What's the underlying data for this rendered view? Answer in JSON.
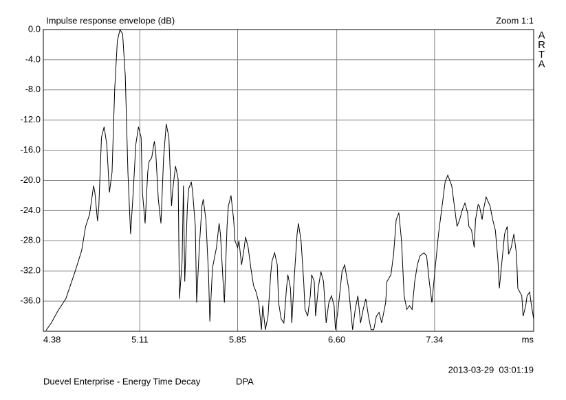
{
  "chart_data": {
    "type": "line",
    "title": "Impulse response envelope (dB)",
    "zoom": "Zoom 1:1",
    "brand": "ARTA",
    "xlabel": "ms",
    "timestamp": "2013-03-29  03:01:19",
    "footer": "Duevel Enterprise - Energy Time Decay",
    "footer_right": "DPA",
    "color": "#000000",
    "grid": true,
    "xlim": [
      4.38,
      8.09
    ],
    "ylim": [
      -40,
      0
    ],
    "xticks": [
      4.38,
      5.11,
      5.85,
      {
        "value": 6.6,
        "label": "6.60"
      },
      7.34
    ],
    "yticks": [
      {
        "value": 0,
        "label": "0.0"
      },
      {
        "value": -4,
        "label": "-4.0"
      },
      {
        "value": -8,
        "label": "-8.0"
      },
      {
        "value": -12,
        "label": "-12.0"
      },
      {
        "value": -16,
        "label": "-16.0"
      },
      {
        "value": -20,
        "label": "-20.0"
      },
      {
        "value": -24,
        "label": "-24.0"
      },
      {
        "value": -28,
        "label": "-28.0"
      },
      {
        "value": -32,
        "label": "-32.0"
      },
      {
        "value": -36,
        "label": "-36.0"
      }
    ],
    "x": [
      4.4,
      4.44,
      4.49,
      4.55,
      4.62,
      4.67,
      4.7,
      4.73,
      4.75,
      4.76,
      4.77,
      4.79,
      4.8,
      4.82,
      4.84,
      4.86,
      4.88,
      4.9,
      4.92,
      4.94,
      4.96,
      4.98,
      5.0,
      5.02,
      5.04,
      5.06,
      5.08,
      5.1,
      5.12,
      5.13,
      5.15,
      5.17,
      5.18,
      5.2,
      5.22,
      5.23,
      5.25,
      5.27,
      5.29,
      5.31,
      5.33,
      5.35,
      5.36,
      5.38,
      5.4,
      5.41,
      5.43,
      5.44,
      5.45,
      5.47,
      5.48,
      5.5,
      5.51,
      5.53,
      5.54,
      5.56,
      5.58,
      5.59,
      5.61,
      5.63,
      5.64,
      5.66,
      5.67,
      5.69,
      5.71,
      5.72,
      5.74,
      5.75,
      5.77,
      5.78,
      5.8,
      5.82,
      5.83,
      5.85,
      5.86,
      5.88,
      5.9,
      5.91,
      5.93,
      5.95,
      5.97,
      5.99,
      6.01,
      6.03,
      6.04,
      6.06,
      6.08,
      6.1,
      6.11,
      6.13,
      6.15,
      6.16,
      6.18,
      6.2,
      6.22,
      6.23,
      6.25,
      6.26,
      6.28,
      6.3,
      6.31,
      6.33,
      6.35,
      6.36,
      6.38,
      6.4,
      6.41,
      6.43,
      6.44,
      6.46,
      6.48,
      6.5,
      6.52,
      6.54,
      6.56,
      6.58,
      6.59,
      6.61,
      6.64,
      6.66,
      6.69,
      6.72,
      6.74,
      6.76,
      6.78,
      6.8,
      6.82,
      6.84,
      6.86,
      6.88,
      6.9,
      6.92,
      6.94,
      6.97,
      6.98,
      7.01,
      7.03,
      7.05,
      7.07,
      7.09,
      7.11,
      7.13,
      7.15,
      7.17,
      7.19,
      7.21,
      7.23,
      7.26,
      7.28,
      7.3,
      7.32,
      7.34,
      7.37,
      7.4,
      7.42,
      7.44,
      7.47,
      7.49,
      7.51,
      7.53,
      7.55,
      7.57,
      7.59,
      7.6,
      7.62,
      7.64,
      7.65,
      7.67,
      7.68,
      7.7,
      7.71,
      7.73,
      7.76,
      7.78,
      7.8,
      7.82,
      7.83,
      7.85,
      7.87,
      7.89,
      7.9,
      7.92,
      7.94,
      7.96,
      7.97,
      8.0,
      8.01,
      8.03,
      8.04,
      8.06,
      8.07,
      8.09
    ],
    "values": [
      -39.9,
      -38.9,
      -37.3,
      -35.7,
      -32.1,
      -29.3,
      -26.1,
      -24.5,
      -22.0,
      -20.7,
      -21.6,
      -25.4,
      -23.4,
      -14.3,
      -12.9,
      -15.2,
      -21.6,
      -18.9,
      -7.9,
      -1.5,
      0.0,
      -0.6,
      -6.1,
      -18.9,
      -27.1,
      -21.6,
      -15.2,
      -12.9,
      -14.3,
      -21.6,
      -25.7,
      -18.9,
      -17.5,
      -17.0,
      -14.8,
      -16.1,
      -22.5,
      -25.7,
      -17.0,
      -12.5,
      -14.3,
      -23.4,
      -21.1,
      -18.1,
      -19.8,
      -35.7,
      -30.7,
      -20.7,
      -33.4,
      -23.4,
      -21.1,
      -20.2,
      -21.6,
      -26.1,
      -36.2,
      -28.9,
      -23.4,
      -22.5,
      -25.2,
      -32.5,
      -38.7,
      -31.6,
      -30.7,
      -28.9,
      -25.7,
      -27.1,
      -33.4,
      -36.2,
      -26.1,
      -23.4,
      -22.0,
      -25.2,
      -28.0,
      -28.9,
      -28.0,
      -31.2,
      -28.9,
      -27.5,
      -28.9,
      -31.6,
      -33.9,
      -34.8,
      -36.2,
      -39.8,
      -36.6,
      -39.8,
      -38.0,
      -32.5,
      -30.7,
      -29.6,
      -31.2,
      -36.2,
      -38.4,
      -38.9,
      -34.3,
      -32.5,
      -34.3,
      -38.9,
      -32.5,
      -27.1,
      -25.7,
      -28.0,
      -33.4,
      -37.1,
      -38.0,
      -35.3,
      -32.5,
      -33.4,
      -38.0,
      -34.3,
      -32.1,
      -33.4,
      -38.9,
      -36.2,
      -35.3,
      -36.6,
      -39.8,
      -37.1,
      -32.1,
      -31.2,
      -34.3,
      -39.8,
      -37.1,
      -35.3,
      -38.9,
      -37.1,
      -35.7,
      -38.0,
      -39.8,
      -39.8,
      -38.0,
      -37.5,
      -38.9,
      -36.2,
      -33.4,
      -32.5,
      -29.8,
      -25.2,
      -24.3,
      -28.0,
      -35.3,
      -37.1,
      -36.6,
      -37.1,
      -33.4,
      -31.2,
      -30.0,
      -29.6,
      -30.0,
      -33.4,
      -36.2,
      -32.5,
      -27.1,
      -23.0,
      -20.2,
      -19.3,
      -20.7,
      -23.4,
      -26.1,
      -25.2,
      -23.9,
      -23.0,
      -24.3,
      -26.1,
      -26.6,
      -28.9,
      -25.2,
      -23.2,
      -23.4,
      -25.2,
      -23.9,
      -22.2,
      -23.4,
      -25.2,
      -26.6,
      -30.7,
      -34.3,
      -30.7,
      -27.1,
      -26.1,
      -29.8,
      -28.9,
      -27.1,
      -29.8,
      -34.3,
      -35.3,
      -38.0,
      -36.6,
      -35.3,
      -34.8,
      -36.2,
      -38.4
    ]
  }
}
